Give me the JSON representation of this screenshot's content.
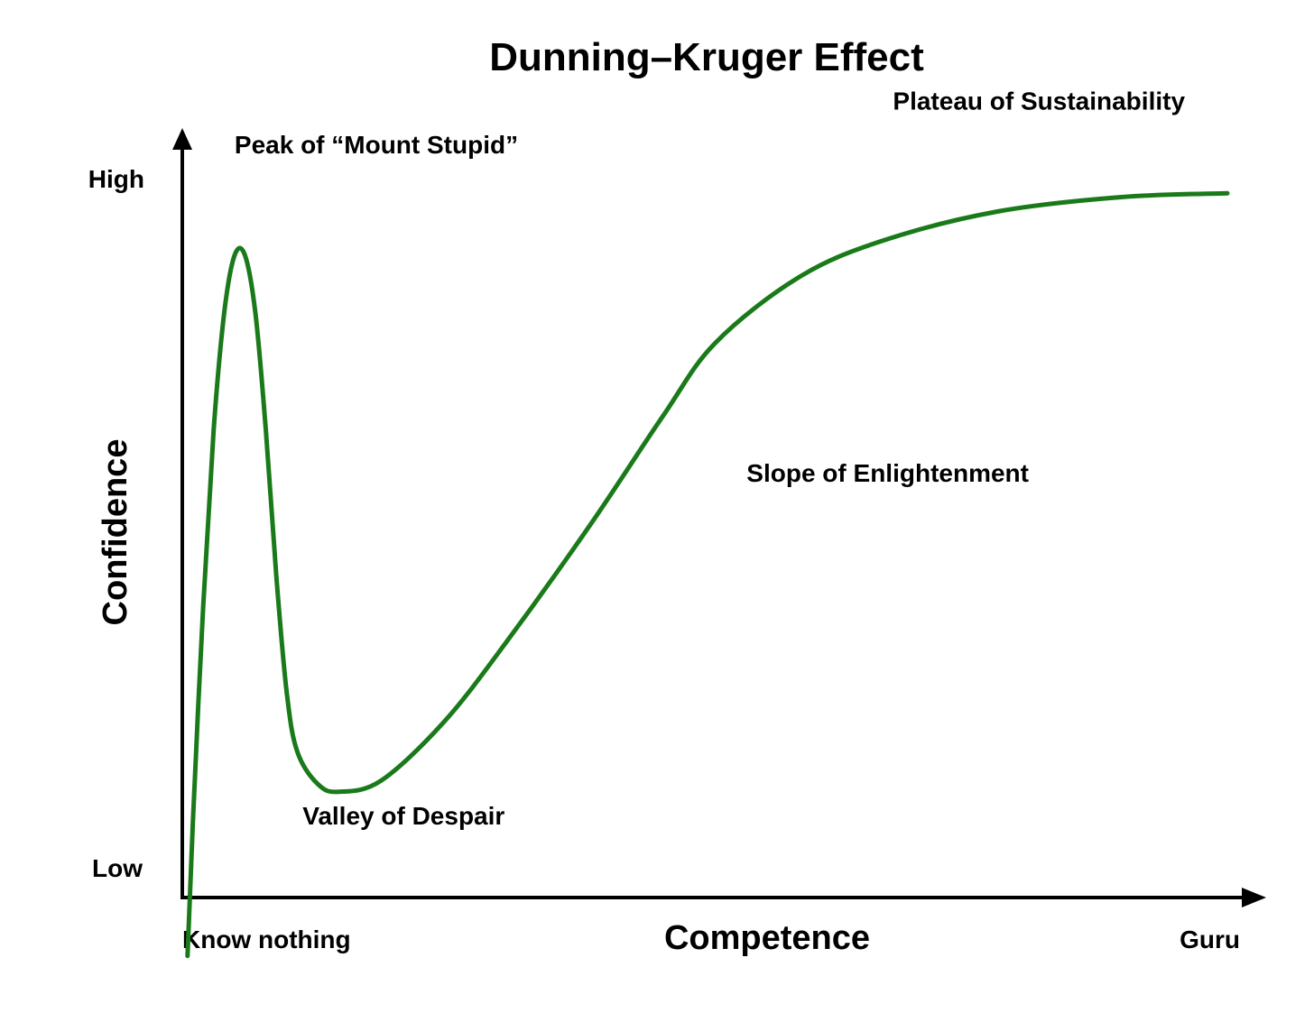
{
  "chart_data": {
    "type": "line",
    "title": "Dunning–Kruger Effect",
    "xlabel": "Competence",
    "ylabel": "Confidence",
    "x_tick_labels": {
      "min": "Know nothing",
      "max": "Guru"
    },
    "y_tick_labels": {
      "min": "Low",
      "max": "High"
    },
    "xlim": [
      0,
      100
    ],
    "ylim": [
      0,
      100
    ],
    "grid": false,
    "legend": "none",
    "series": [
      {
        "color": "#1a7a1a",
        "points": [
          [
            0.5,
            -8
          ],
          [
            1,
            10
          ],
          [
            2,
            40
          ],
          [
            3,
            64
          ],
          [
            4,
            80
          ],
          [
            5,
            88
          ],
          [
            6,
            88
          ],
          [
            7,
            80
          ],
          [
            8,
            64
          ],
          [
            9,
            44
          ],
          [
            10,
            28
          ],
          [
            11,
            20
          ],
          [
            13,
            15.5
          ],
          [
            15,
            14.5
          ],
          [
            19,
            16
          ],
          [
            25,
            24
          ],
          [
            31,
            35
          ],
          [
            39,
            51
          ],
          [
            46,
            66
          ],
          [
            51,
            76
          ],
          [
            59,
            85
          ],
          [
            67,
            90
          ],
          [
            78,
            94
          ],
          [
            90,
            96
          ],
          [
            100,
            96.5
          ]
        ]
      }
    ],
    "annotations": [
      {
        "text": "Peak of “Mount Stupid”",
        "x": 5,
        "y": 102
      },
      {
        "text": "Valley of Despair",
        "x": 11.5,
        "y": 10
      },
      {
        "text": "Slope of Enlightenment",
        "x": 54,
        "y": 57
      },
      {
        "text": "Plateau of Sustainability",
        "x": 68,
        "y": 108
      }
    ]
  }
}
